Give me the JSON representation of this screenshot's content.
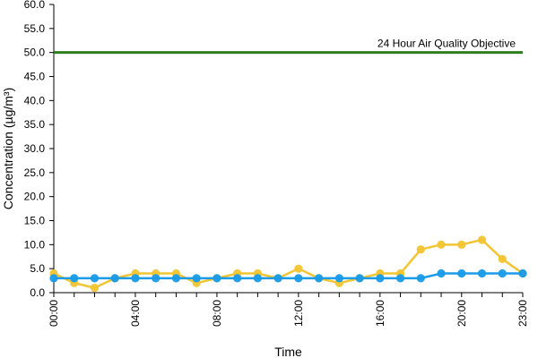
{
  "chart_data": {
    "type": "line",
    "xlabel": "Time",
    "ylabel": "Concentration (µg/m³)",
    "ylim": [
      0,
      60
    ],
    "yticks": [
      "0.0",
      "5.0",
      "10.0",
      "15.0",
      "20.0",
      "25.0",
      "30.0",
      "35.0",
      "40.0",
      "45.0",
      "50.0",
      "55.0",
      "60.0"
    ],
    "yticks_values": [
      0,
      5,
      10,
      15,
      20,
      25,
      30,
      35,
      40,
      45,
      50,
      55,
      60
    ],
    "x": [
      "00:00",
      "01:00",
      "02:00",
      "03:00",
      "04:00",
      "05:00",
      "06:00",
      "07:00",
      "08:00",
      "09:00",
      "10:00",
      "11:00",
      "12:00",
      "13:00",
      "14:00",
      "15:00",
      "16:00",
      "17:00",
      "18:00",
      "19:00",
      "20:00",
      "21:00",
      "22:00",
      "23:00"
    ],
    "xticks": [
      "00:00",
      "04:00",
      "08:00",
      "12:00",
      "16:00",
      "20:00",
      "23:00"
    ],
    "grid": false,
    "series": [
      {
        "color": "#f2c534",
        "values": [
          4,
          2,
          1,
          3,
          4,
          4,
          4,
          2,
          3,
          4,
          4,
          3,
          5,
          3,
          2,
          3,
          4,
          4,
          9,
          10,
          10,
          11,
          7,
          4
        ]
      },
      {
        "color": "#1a9be8",
        "values": [
          3,
          3,
          3,
          3,
          3,
          3,
          3,
          3,
          3,
          3,
          3,
          3,
          3,
          3,
          3,
          3,
          3,
          3,
          3,
          4,
          4,
          4,
          4,
          4
        ]
      }
    ],
    "reference_line": {
      "value": 50,
      "label": "24 Hour Air Quality Objective",
      "color": "#2e7d1f"
    }
  }
}
